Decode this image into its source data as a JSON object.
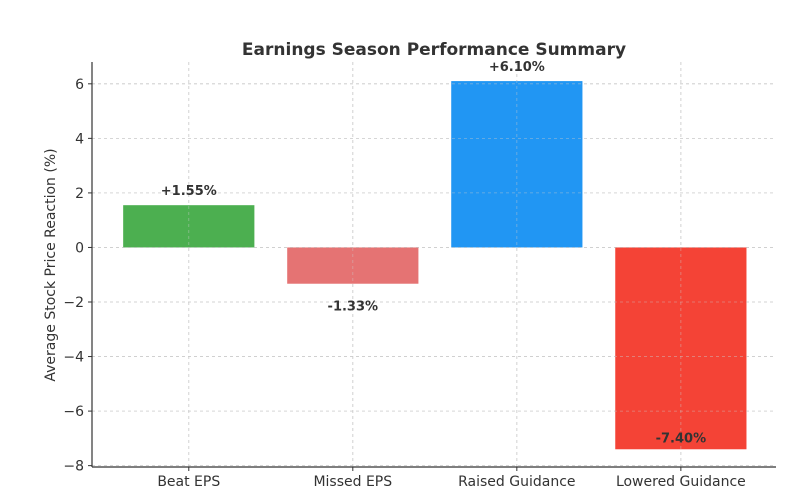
{
  "chart_data": {
    "type": "bar",
    "title": "Earnings Season Performance Summary",
    "xlabel": "",
    "ylabel": "Average Stock Price Reaction (%)",
    "categories": [
      "Beat EPS",
      "Missed EPS",
      "Raised Guidance",
      "Lowered Guidance"
    ],
    "values": [
      1.55,
      -1.33,
      6.1,
      -7.4
    ],
    "data_labels": [
      "+1.55%",
      "-1.33%",
      "+6.10%",
      "-7.40%"
    ],
    "colors": [
      "#4caf50",
      "#e57373",
      "#2196f3",
      "#f44336"
    ],
    "ylim": [
      -8.05,
      6.8
    ],
    "yticks": [
      -8,
      -6,
      -4,
      -2,
      0,
      2,
      4,
      6
    ],
    "ytick_labels": [
      "−8",
      "−6",
      "−4",
      "−2",
      "0",
      "2",
      "4",
      "6"
    ],
    "grid": true
  }
}
